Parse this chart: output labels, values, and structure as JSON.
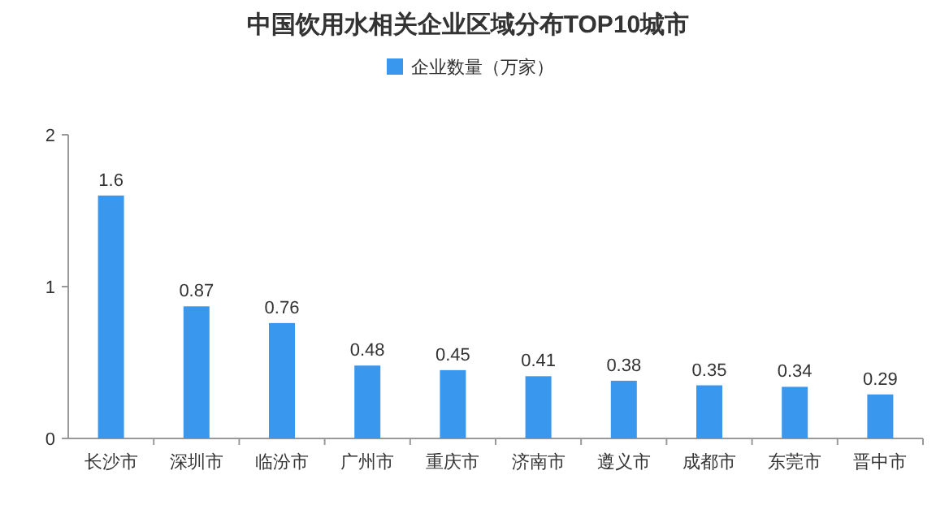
{
  "chart_data": {
    "type": "bar",
    "title": "中国饮用水相关企业区域分布TOP10城市",
    "categories": [
      "长沙市",
      "深圳市",
      "临汾市",
      "广州市",
      "重庆市",
      "济南市",
      "遵义市",
      "成都市",
      "东莞市",
      "晋中市"
    ],
    "series": [
      {
        "name": "企业数量（万家）",
        "color": "#3a97ee",
        "values": [
          1.6,
          0.87,
          0.76,
          0.48,
          0.45,
          0.41,
          0.38,
          0.35,
          0.34,
          0.29
        ]
      }
    ],
    "ylim": [
      0,
      2
    ],
    "yticks": [
      0,
      1,
      2
    ],
    "data_labels": true,
    "legend": "top",
    "grid": false
  }
}
